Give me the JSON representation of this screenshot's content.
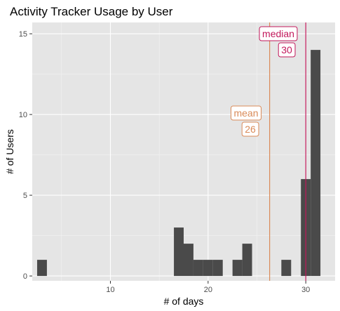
{
  "chart_data": {
    "type": "histogram",
    "title": "Activity Tracker Usage by User",
    "xlabel": "# of days",
    "ylabel": "# of Users",
    "xlim": [
      2,
      33
    ],
    "ylim": [
      -0.3,
      15.7
    ],
    "x_ticks": [
      10,
      20,
      30
    ],
    "y_ticks": [
      0,
      5,
      10,
      15
    ],
    "grid": true,
    "bin_width": 1,
    "bins": [
      {
        "x": 3,
        "count": 1
      },
      {
        "x": 17,
        "count": 3
      },
      {
        "x": 18,
        "count": 2
      },
      {
        "x": 19,
        "count": 1
      },
      {
        "x": 20,
        "count": 1
      },
      {
        "x": 21,
        "count": 1
      },
      {
        "x": 23,
        "count": 1
      },
      {
        "x": 24,
        "count": 2
      },
      {
        "x": 28,
        "count": 1
      },
      {
        "x": 30,
        "count": 6
      },
      {
        "x": 31,
        "count": 14
      }
    ],
    "reference_lines": [
      {
        "name": "mean",
        "value_label": "26",
        "x": 26.3,
        "color": "#d98a58"
      },
      {
        "name": "median",
        "value_label": "30",
        "x": 30,
        "color": "#c2185b"
      }
    ],
    "colors": {
      "bar": "#4a4a4a",
      "panel": "#e5e5e5",
      "grid_major": "#ffffff",
      "grid_minor": "#f2f2f2"
    }
  }
}
